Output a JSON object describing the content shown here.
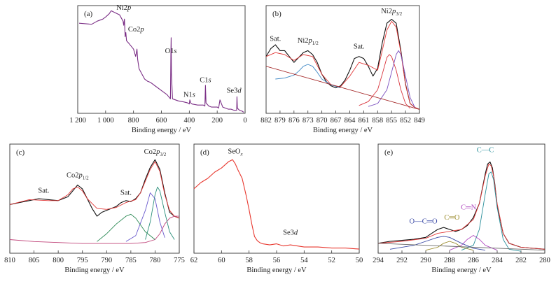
{
  "figure": {
    "panels": 5
  },
  "chart_data": [
    {
      "id": "a",
      "type": "line",
      "panel_label": "(a)",
      "xlabel": "Binding energy / eV",
      "ylabel": "",
      "xlim": [
        1200,
        0
      ],
      "x_reversed": true,
      "xticks": [
        1200,
        1000,
        800,
        600,
        400,
        200,
        0
      ],
      "xtick_labels": [
        "1 200",
        "1 000",
        "800",
        "600",
        "400",
        "200",
        "0"
      ],
      "grid": false,
      "series": [
        {
          "name": "",
          "color": "#7b2f86",
          "x": [
            1190,
            1100,
            1060,
            1020,
            1000,
            975,
            960,
            930,
            900,
            875,
            870,
            865,
            860,
            855,
            850,
            830,
            800,
            785,
            780,
            775,
            770,
            760,
            740,
            720,
            700,
            680,
            640,
            600,
            560,
            535,
            532,
            530,
            528,
            520,
            480,
            440,
            410,
            400,
            396,
            390,
            380,
            340,
            300,
            288,
            284,
            280,
            260,
            240,
            200,
            190,
            180,
            160,
            140,
            120,
            100,
            80,
            60,
            58,
            55,
            40,
            20,
            10
          ],
          "y": [
            87,
            86,
            89,
            91,
            93,
            96,
            99,
            97,
            95,
            89,
            85,
            91,
            74,
            78,
            70,
            67,
            62,
            55,
            58,
            62,
            52,
            43,
            38,
            33,
            31,
            30,
            26,
            22,
            18,
            14,
            55,
            73,
            38,
            14,
            12,
            11,
            10,
            9,
            13,
            10,
            9,
            8,
            8,
            7,
            27,
            10,
            7,
            6,
            6,
            5,
            13,
            6,
            5,
            4,
            4,
            3,
            3,
            16,
            5,
            3,
            2,
            1
          ]
        }
      ],
      "annotations": [
        {
          "text": "Ni2",
          "italic": "p",
          "x": 870,
          "y": 100
        },
        {
          "text": "Co2",
          "italic": "p",
          "x": 782,
          "y": 79
        },
        {
          "text": "O1",
          "italic": "s",
          "x": 532,
          "y": 58
        },
        {
          "text": "N1",
          "italic": "s",
          "x": 400,
          "y": 16
        },
        {
          "text": "C1",
          "italic": "s",
          "x": 284,
          "y": 30
        },
        {
          "text": "Se3",
          "italic": "d",
          "x": 80,
          "y": 20
        }
      ]
    },
    {
      "id": "b",
      "type": "line",
      "panel_label": "(b)",
      "xlabel": "Binding energy / eV",
      "ylabel": "",
      "xlim": [
        882,
        849
      ],
      "x_reversed": true,
      "xticks": [
        882,
        879,
        876,
        873,
        870,
        867,
        864,
        861,
        858,
        855,
        852,
        849
      ],
      "xtick_labels": [
        "882",
        "879",
        "876",
        "873",
        "870",
        "867",
        "864",
        "861",
        "858",
        "855",
        "852",
        "849"
      ],
      "grid": false,
      "series": [
        {
          "name": "",
          "color": "#111111",
          "x": [
            882,
            881,
            880,
            879,
            878,
            877,
            876,
            875,
            874,
            873,
            872,
            871,
            870,
            869,
            868,
            867,
            866,
            865,
            864,
            863,
            862,
            861,
            860,
            859,
            858,
            857,
            856,
            855,
            854,
            853,
            852,
            851,
            850,
            849
          ],
          "y": [
            0.56,
            0.64,
            0.68,
            0.62,
            0.62,
            0.56,
            0.5,
            0.55,
            0.6,
            0.62,
            0.58,
            0.5,
            0.38,
            0.3,
            0.26,
            0.24,
            0.26,
            0.32,
            0.42,
            0.54,
            0.56,
            0.54,
            0.46,
            0.36,
            0.44,
            0.7,
            0.9,
            0.94,
            0.9,
            0.62,
            0.28,
            0.08,
            0.04,
            0.02
          ]
        },
        {
          "name": "",
          "color": "#e23a3a",
          "x": [
            882,
            880,
            878,
            876,
            874,
            872,
            870,
            868,
            866,
            864,
            862,
            860,
            858,
            857,
            856,
            855,
            854,
            853,
            852,
            851,
            850,
            849
          ],
          "y": [
            0.56,
            0.6,
            0.58,
            0.52,
            0.58,
            0.56,
            0.38,
            0.27,
            0.25,
            0.36,
            0.5,
            0.47,
            0.42,
            0.62,
            0.83,
            0.92,
            0.86,
            0.6,
            0.27,
            0.08,
            0.04,
            0.02
          ]
        },
        {
          "name": "",
          "color": "#3f88c5",
          "x": [
            880,
            878,
            876,
            875,
            874,
            873,
            872,
            871,
            870,
            868,
            866
          ],
          "y": [
            0.33,
            0.34,
            0.37,
            0.41,
            0.46,
            0.48,
            0.46,
            0.4,
            0.33,
            0.27,
            0.24
          ]
        },
        {
          "name": "",
          "color": "#d9363e",
          "x": [
            862,
            860,
            858,
            857,
            856,
            855.5,
            855,
            854,
            853,
            852,
            851
          ],
          "y": [
            0.06,
            0.1,
            0.22,
            0.38,
            0.55,
            0.58,
            0.56,
            0.42,
            0.22,
            0.08,
            0.03
          ]
        },
        {
          "name": "",
          "color": "#7a4fbf",
          "x": [
            860,
            858,
            856,
            855,
            854,
            853.5,
            853,
            852,
            851,
            850
          ],
          "y": [
            0.05,
            0.08,
            0.22,
            0.4,
            0.58,
            0.62,
            0.58,
            0.36,
            0.14,
            0.04
          ]
        },
        {
          "name": "",
          "color": "#a52a2a",
          "x": [
            882,
            849
          ],
          "y": [
            0.46,
            0.02
          ]
        }
      ],
      "annotations": [
        {
          "text": "Sat.",
          "x": 880,
          "y": 0.72
        },
        {
          "text": "Ni2",
          "italic": "p",
          "subscript": "1/2",
          "x": 873,
          "y": 0.7
        },
        {
          "text": "Sat.",
          "x": 862,
          "y": 0.64
        },
        {
          "text": "Ni2",
          "italic": "p",
          "subscript": "3/2",
          "x": 855,
          "y": 1.0
        }
      ]
    },
    {
      "id": "c",
      "type": "line",
      "panel_label": "(c)",
      "xlabel": "Binding energy / eV",
      "ylabel": "",
      "xlim": [
        810,
        775
      ],
      "x_reversed": true,
      "xticks": [
        810,
        805,
        800,
        795,
        790,
        785,
        780,
        775
      ],
      "xtick_labels": [
        "810",
        "805",
        "800",
        "795",
        "790",
        "785",
        "780",
        "775"
      ],
      "grid": false,
      "series": [
        {
          "name": "",
          "color": "#111111",
          "x": [
            810,
            808,
            806,
            804,
            802,
            800,
            798,
            797,
            796,
            795,
            794,
            793,
            792,
            791,
            790,
            789,
            788,
            787,
            786,
            785,
            784,
            783,
            782,
            781,
            780,
            779,
            778,
            777,
            776,
            775
          ],
          "y": [
            0.5,
            0.52,
            0.54,
            0.56,
            0.55,
            0.54,
            0.58,
            0.64,
            0.7,
            0.66,
            0.56,
            0.46,
            0.38,
            0.42,
            0.44,
            0.46,
            0.48,
            0.52,
            0.54,
            0.53,
            0.56,
            0.62,
            0.76,
            0.88,
            0.96,
            0.86,
            0.62,
            0.42,
            0.38,
            0.36
          ]
        },
        {
          "name": "",
          "color": "#e23a3a",
          "x": [
            810,
            806,
            802,
            800,
            798,
            797,
            796,
            795,
            794,
            792,
            790,
            788,
            786,
            784,
            783,
            782,
            781,
            780,
            779,
            778,
            777,
            776,
            775
          ],
          "y": [
            0.5,
            0.55,
            0.54,
            0.54,
            0.6,
            0.66,
            0.68,
            0.64,
            0.56,
            0.46,
            0.45,
            0.47,
            0.52,
            0.55,
            0.62,
            0.74,
            0.86,
            0.94,
            0.84,
            0.6,
            0.44,
            0.38,
            0.36
          ]
        },
        {
          "name": "",
          "color": "#c0457a",
          "x": [
            810,
            805,
            800,
            795,
            790,
            785,
            782,
            780,
            779,
            778,
            777,
            776,
            775
          ],
          "y": [
            0.14,
            0.12,
            0.11,
            0.1,
            0.1,
            0.1,
            0.11,
            0.14,
            0.2,
            0.3,
            0.36,
            0.38,
            0.38
          ]
        },
        {
          "name": "",
          "color": "#2a8f7a",
          "x": [
            782,
            781,
            780,
            779.5,
            779,
            778,
            777,
            776
          ],
          "y": [
            0.14,
            0.32,
            0.6,
            0.68,
            0.64,
            0.42,
            0.22,
            0.14
          ]
        },
        {
          "name": "",
          "color": "#6a5acd",
          "x": [
            786,
            784,
            782,
            781,
            780,
            779,
            778
          ],
          "y": [
            0.12,
            0.18,
            0.44,
            0.62,
            0.56,
            0.32,
            0.16
          ]
        },
        {
          "name": "",
          "color": "#2e8b57",
          "x": [
            792,
            790,
            788,
            786,
            785,
            784,
            782,
            780
          ],
          "y": [
            0.12,
            0.2,
            0.3,
            0.38,
            0.4,
            0.36,
            0.22,
            0.14
          ]
        }
      ],
      "annotations": [
        {
          "text": "Sat.",
          "x": 803,
          "y": 0.62
        },
        {
          "text": "Co2",
          "italic": "p",
          "subscript": "1/2",
          "x": 796,
          "y": 0.78
        },
        {
          "text": "Sat.",
          "x": 786,
          "y": 0.6
        },
        {
          "text": "Co2",
          "italic": "p",
          "subscript": "3/2",
          "x": 780,
          "y": 1.02
        }
      ]
    },
    {
      "id": "d",
      "type": "line",
      "panel_label": "(d)",
      "xlabel": "Binding energy / eV",
      "ylabel": "",
      "xlim": [
        62,
        50
      ],
      "x_reversed": true,
      "xticks": [
        62,
        60,
        58,
        56,
        54,
        52,
        50
      ],
      "xtick_labels": [
        "62",
        "60",
        "58",
        "56",
        "54",
        "52",
        "50"
      ],
      "grid": false,
      "series": [
        {
          "name": "",
          "color": "#e8382f",
          "x": [
            62,
            61.5,
            61,
            60.5,
            60,
            59.5,
            59.2,
            59,
            58.8,
            58.5,
            58.2,
            58,
            57.8,
            57.6,
            57.4,
            57.2,
            57,
            56.5,
            56,
            55.5,
            55,
            54,
            53,
            52,
            51,
            50
          ],
          "y": [
            0.62,
            0.68,
            0.72,
            0.78,
            0.82,
            0.88,
            0.9,
            0.86,
            0.8,
            0.72,
            0.55,
            0.42,
            0.28,
            0.16,
            0.12,
            0.1,
            0.09,
            0.08,
            0.09,
            0.07,
            0.08,
            0.06,
            0.06,
            0.05,
            0.05,
            0.04
          ]
        }
      ],
      "annotations": [
        {
          "text": "SeO",
          "subscript": "x",
          "x": 59,
          "y": 0.96
        },
        {
          "text": "Se3",
          "italic": "d",
          "x": 55,
          "y": 0.18
        }
      ]
    },
    {
      "id": "e",
      "type": "line",
      "panel_label": "(e)",
      "xlabel": "Binding energy / eV",
      "ylabel": "",
      "xlim": [
        294,
        280
      ],
      "x_reversed": true,
      "xticks": [
        294,
        292,
        290,
        288,
        286,
        284,
        282,
        280
      ],
      "xtick_labels": [
        "294",
        "292",
        "290",
        "288",
        "286",
        "284",
        "282",
        "280"
      ],
      "grid": false,
      "series": [
        {
          "name": "",
          "color": "#111111",
          "x": [
            294,
            293,
            292,
            291,
            290,
            289.5,
            289,
            288.5,
            288,
            287.5,
            287,
            286.5,
            286,
            285.5,
            285,
            284.8,
            284.6,
            284.4,
            284.2,
            284,
            283.5,
            283,
            282,
            281,
            280
          ],
          "y": [
            0.1,
            0.12,
            0.13,
            0.14,
            0.16,
            0.2,
            0.24,
            0.26,
            0.24,
            0.22,
            0.24,
            0.28,
            0.36,
            0.5,
            0.8,
            0.9,
            0.92,
            0.86,
            0.7,
            0.48,
            0.2,
            0.1,
            0.06,
            0.05,
            0.04
          ]
        },
        {
          "name": "",
          "color": "#e23a3a",
          "x": [
            294,
            292,
            290,
            289,
            288,
            287,
            286,
            285.5,
            285,
            284.7,
            284.5,
            284.3,
            284,
            283.5,
            283,
            282,
            281,
            280
          ],
          "y": [
            0.1,
            0.12,
            0.15,
            0.2,
            0.22,
            0.24,
            0.34,
            0.5,
            0.78,
            0.9,
            0.88,
            0.78,
            0.5,
            0.2,
            0.1,
            0.06,
            0.05,
            0.04
          ]
        },
        {
          "name": "",
          "color": "#2a8f9a",
          "x": [
            287,
            286,
            285.5,
            285,
            284.7,
            284.5,
            284.3,
            284,
            283.5,
            283,
            282
          ],
          "y": [
            0.03,
            0.08,
            0.24,
            0.6,
            0.8,
            0.82,
            0.74,
            0.46,
            0.14,
            0.04,
            0.02
          ]
        },
        {
          "name": "",
          "color": "#b04bc0",
          "x": [
            288,
            287,
            286.5,
            286,
            285.5,
            285,
            284
          ],
          "y": [
            0.03,
            0.08,
            0.14,
            0.18,
            0.14,
            0.08,
            0.03
          ]
        },
        {
          "name": "",
          "color": "#9a8a2a",
          "x": [
            290,
            289,
            288.5,
            288,
            287.5,
            287,
            286
          ],
          "y": [
            0.03,
            0.06,
            0.1,
            0.12,
            0.1,
            0.06,
            0.03
          ]
        },
        {
          "name": "",
          "color": "#3b4aa6",
          "x": [
            293,
            291,
            290,
            289,
            288.5,
            288,
            287,
            286,
            285
          ],
          "y": [
            0.04,
            0.08,
            0.12,
            0.16,
            0.17,
            0.16,
            0.1,
            0.05,
            0.03
          ]
        },
        {
          "name": "",
          "color": "#6a6a6a",
          "x": [
            294,
            280
          ],
          "y": [
            0.1,
            0.03
          ]
        }
      ],
      "annotations": [
        {
          "text": "C—C",
          "color": "#2a8f9a",
          "x": 285,
          "y": 1.02
        },
        {
          "text": "C═N",
          "color": "#b04bc0",
          "x": 286.4,
          "y": 0.44
        },
        {
          "text": "C═O",
          "color": "#9a8a2a",
          "x": 287.8,
          "y": 0.34
        },
        {
          "text": "O—C═O",
          "color": "#3b4aa6",
          "x": 290.2,
          "y": 0.3
        }
      ]
    }
  ]
}
